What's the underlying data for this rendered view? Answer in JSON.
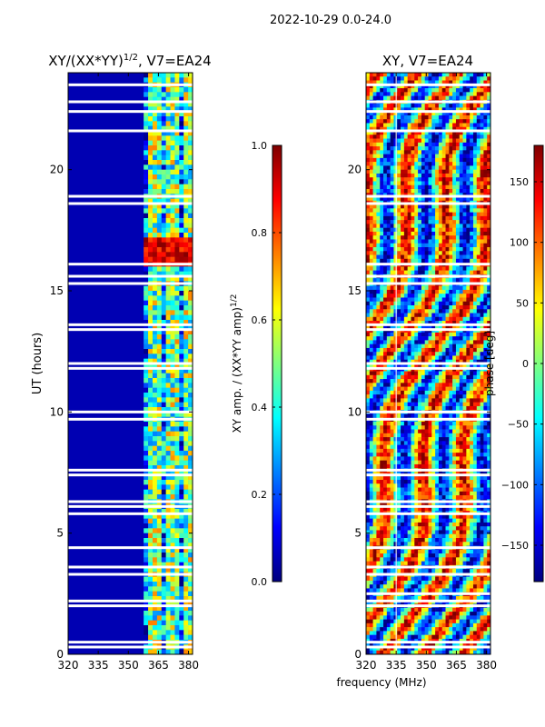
{
  "figure": {
    "suptitle": "2022-10-29 0.0-24.0",
    "shared_xlabel": "frequency (MHz)"
  },
  "colors": {
    "jet": [
      "#00007f",
      "#0000ff",
      "#007fff",
      "#00ffff",
      "#7fff7f",
      "#ffff00",
      "#ff7f00",
      "#ff0000",
      "#7f0000"
    ],
    "background": "#ffffff"
  },
  "chart_data": [
    {
      "type": "heatmap",
      "title_main": "XY/(XX*YY)",
      "title_sup": "1/2",
      "title_tail": ", V7=EA24",
      "xlabel": "",
      "ylabel": "UT (hours)",
      "xlim": [
        320,
        382
      ],
      "ylim": [
        0,
        24
      ],
      "xticks": [
        320,
        335,
        350,
        365,
        380
      ],
      "yticks": [
        0,
        5,
        10,
        15,
        20
      ],
      "colorbar": {
        "label_main": "XY amp. / (XX*YY amp)",
        "label_sup": "1/2",
        "range": [
          0.0,
          1.0
        ],
        "ticks": [
          0.0,
          0.2,
          0.4,
          0.6,
          0.8,
          1.0
        ],
        "tick_labels": [
          "0.0",
          "0.2",
          "0.4",
          "0.6",
          "0.8",
          "1.0"
        ]
      },
      "description_values": {
        "low_band_MHz": [
          320,
          358
        ],
        "low_band_level": 0.05,
        "high_band_MHz": [
          358,
          382
        ],
        "high_band_level": 0.5,
        "bright_hours": [
          16,
          17.3
        ],
        "bright_level": 0.9,
        "flagged_hours": [
          0.3,
          0.5,
          2.0,
          2.2,
          3.3,
          3.6,
          4.4,
          5.8,
          6.1,
          6.3,
          7.4,
          7.6,
          9.7,
          10.0,
          11.8,
          12.0,
          13.4,
          13.6,
          15.3,
          15.6,
          16.1,
          18.6,
          18.9,
          21.6,
          22.4,
          22.8,
          23.5
        ]
      }
    },
    {
      "type": "heatmap",
      "title": "XY, V7=EA24",
      "xlabel": "",
      "ylabel": "",
      "xlim": [
        320,
        382
      ],
      "ylim": [
        0,
        24
      ],
      "xticks": [
        320,
        335,
        350,
        365,
        380
      ],
      "yticks": [
        0,
        5,
        10,
        15,
        20
      ],
      "colorbar": {
        "label": "phase [deg]",
        "range": [
          -180,
          180
        ],
        "ticks": [
          -150,
          -100,
          -50,
          0,
          50,
          100,
          150
        ],
        "tick_labels": [
          "−150",
          "−100",
          "−50",
          "0",
          "50",
          "100",
          "150"
        ]
      },
      "description_values": {
        "phase_range_deg": [
          -180,
          180
        ],
        "flagged_hours": [
          0.3,
          0.5,
          2.0,
          2.2,
          2.5,
          3.3,
          3.6,
          4.4,
          5.8,
          6.1,
          6.3,
          7.4,
          7.6,
          9.7,
          10.0,
          11.8,
          12.0,
          13.4,
          13.6,
          15.3,
          15.6,
          16.1,
          18.6,
          18.9,
          21.6,
          22.4,
          22.8,
          23.5
        ]
      }
    }
  ]
}
